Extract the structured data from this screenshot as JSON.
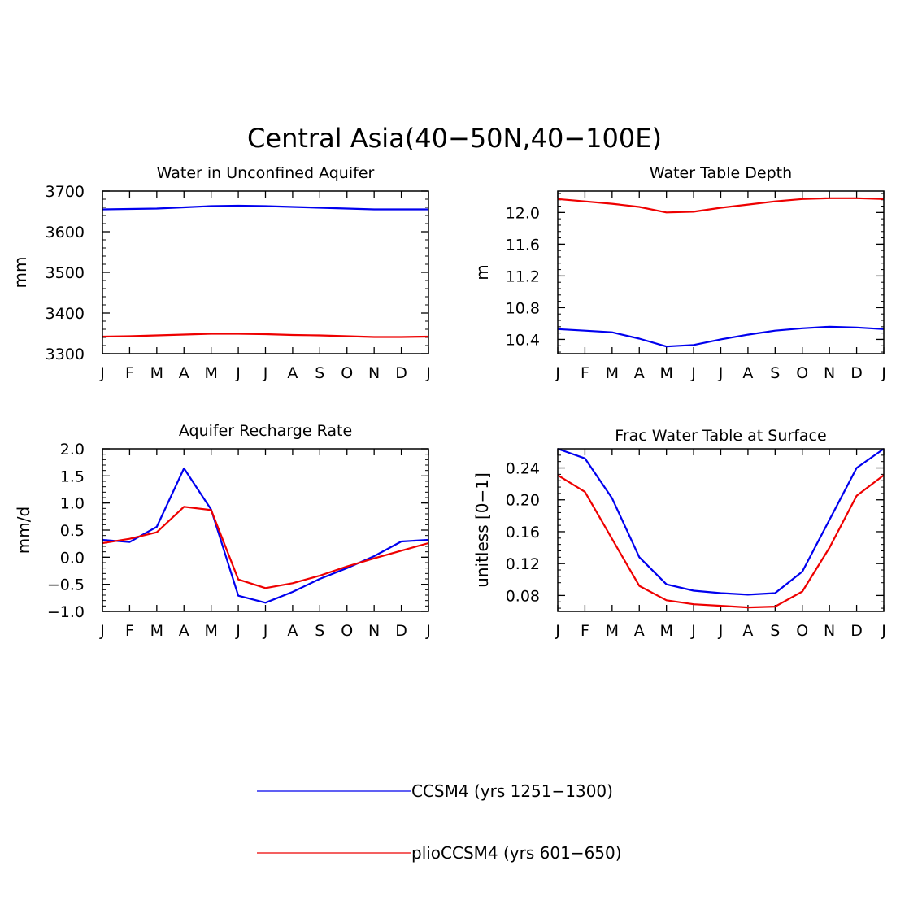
{
  "figure": {
    "title": "Central Asia(40−50N,40−100E)",
    "colors": {
      "ccsm4": "#0000ee",
      "plio": "#ee0000"
    }
  },
  "legend": {
    "entries": [
      {
        "label": "CCSM4 (yrs 1251−1300)",
        "color": "#0000ee"
      },
      {
        "label": "plioCCSM4 (yrs 601−650)",
        "color": "#ee0000"
      }
    ]
  },
  "chart_data": [
    {
      "type": "line",
      "title": "Water in Unconfined Aquifer",
      "xlabel": "",
      "ylabel": "mm",
      "categories": [
        "J",
        "F",
        "M",
        "A",
        "M",
        "J",
        "J",
        "A",
        "S",
        "O",
        "N",
        "D",
        "J"
      ],
      "ylim": [
        3300,
        3700
      ],
      "yticks": [
        3300,
        3400,
        3500,
        3600,
        3700
      ],
      "ytick_labels": [
        "3300",
        "3400",
        "3500",
        "3600",
        "3700"
      ],
      "series": [
        {
          "name": "CCSM4 (yrs 1251−1300)",
          "color": "#0000ee",
          "values": [
            3655,
            3656,
            3657,
            3660,
            3663,
            3664,
            3663,
            3661,
            3659,
            3657,
            3655,
            3655,
            3655
          ]
        },
        {
          "name": "plioCCSM4 (yrs 601−650)",
          "color": "#ee0000",
          "values": [
            3342,
            3343,
            3345,
            3347,
            3349,
            3349,
            3348,
            3346,
            3345,
            3343,
            3341,
            3341,
            3342
          ]
        }
      ]
    },
    {
      "type": "line",
      "title": "Water Table Depth",
      "xlabel": "",
      "ylabel": "m",
      "categories": [
        "J",
        "F",
        "M",
        "A",
        "M",
        "J",
        "J",
        "A",
        "S",
        "O",
        "N",
        "D",
        "J"
      ],
      "ylim": [
        10.22,
        12.27
      ],
      "yticks": [
        10.4,
        10.8,
        11.2,
        11.6,
        12.0
      ],
      "ytick_labels": [
        "10.4",
        "10.8",
        "11.2",
        "11.6",
        "12.0"
      ],
      "series": [
        {
          "name": "CCSM4 (yrs 1251−1300)",
          "color": "#0000ee",
          "values": [
            10.53,
            10.51,
            10.49,
            10.41,
            10.31,
            10.33,
            10.4,
            10.46,
            10.51,
            10.54,
            10.56,
            10.55,
            10.53
          ]
        },
        {
          "name": "plioCCSM4 (yrs 601−650)",
          "color": "#ee0000",
          "values": [
            12.17,
            12.14,
            12.11,
            12.07,
            12.0,
            12.01,
            12.06,
            12.1,
            12.14,
            12.17,
            12.18,
            12.18,
            12.17
          ]
        }
      ]
    },
    {
      "type": "line",
      "title": "Aquifer Recharge Rate",
      "xlabel": "",
      "ylabel": "mm/d",
      "categories": [
        "J",
        "F",
        "M",
        "A",
        "M",
        "J",
        "J",
        "A",
        "S",
        "O",
        "N",
        "D",
        "J"
      ],
      "ylim": [
        -1.0,
        2.0
      ],
      "yticks": [
        -1.0,
        -0.5,
        0.0,
        0.5,
        1.0,
        1.5,
        2.0
      ],
      "ytick_labels": [
        "−1.0",
        "−0.5",
        "0.0",
        "0.5",
        "1.0",
        "1.5",
        "2.0"
      ],
      "series": [
        {
          "name": "CCSM4 (yrs 1251−1300)",
          "color": "#0000ee",
          "values": [
            0.32,
            0.28,
            0.56,
            1.64,
            0.88,
            -0.71,
            -0.84,
            -0.64,
            -0.4,
            -0.2,
            0.02,
            0.29,
            0.32
          ]
        },
        {
          "name": "plioCCSM4 (yrs 601−650)",
          "color": "#ee0000",
          "values": [
            0.26,
            0.34,
            0.46,
            0.93,
            0.87,
            -0.41,
            -0.57,
            -0.48,
            -0.34,
            -0.17,
            -0.02,
            0.12,
            0.26
          ]
        }
      ]
    },
    {
      "type": "line",
      "title": "Frac Water Table at Surface",
      "xlabel": "",
      "ylabel": "unitless [0−1]",
      "categories": [
        "J",
        "F",
        "M",
        "A",
        "M",
        "J",
        "J",
        "A",
        "S",
        "O",
        "N",
        "D",
        "J"
      ],
      "ylim": [
        0.06,
        0.264
      ],
      "yticks": [
        0.08,
        0.12,
        0.16,
        0.2,
        0.24
      ],
      "ytick_labels": [
        "0.08",
        "0.12",
        "0.16",
        "0.20",
        "0.24"
      ],
      "series": [
        {
          "name": "CCSM4 (yrs 1251−1300)",
          "color": "#0000ee",
          "values": [
            0.264,
            0.252,
            0.202,
            0.128,
            0.094,
            0.086,
            0.083,
            0.081,
            0.083,
            0.11,
            0.175,
            0.24,
            0.264
          ]
        },
        {
          "name": "plioCCSM4 (yrs 601−650)",
          "color": "#ee0000",
          "values": [
            0.231,
            0.21,
            0.151,
            0.092,
            0.074,
            0.069,
            0.067,
            0.065,
            0.066,
            0.085,
            0.14,
            0.205,
            0.231
          ]
        }
      ]
    }
  ]
}
